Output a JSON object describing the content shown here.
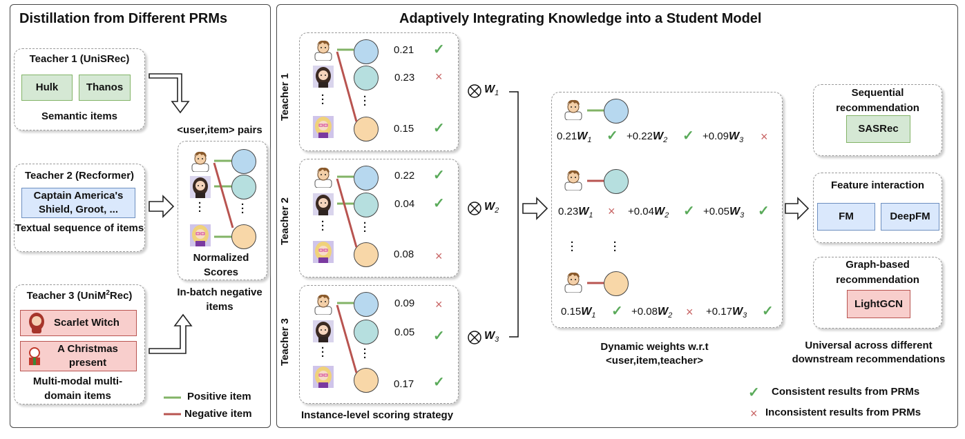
{
  "left_panel": {
    "title": "Distillation from Different PRMs",
    "teacher1": {
      "title": "Teacher 1 (UniSRec)",
      "items": [
        "Hulk",
        "Thanos"
      ],
      "caption": "Semantic items"
    },
    "teacher2": {
      "title": "Teacher 2 (Recformer)",
      "items": [
        "Captain America's Shield, Groot, ..."
      ],
      "caption": "Textual sequence of items"
    },
    "teacher3": {
      "title_pre": "Teacher 3 (UniM",
      "title_sup": "2",
      "title_post": "Rec)",
      "items": [
        "Scarlet Witch",
        "A Christmas present"
      ],
      "caption": "Multi-modal multi-domain items"
    },
    "pairs_label": "<user,item> pairs",
    "normalized_label": "Normalized Scores",
    "inbatch_label": "In-batch negative items",
    "legend": {
      "positive": "Positive item",
      "negative": "Negative item"
    }
  },
  "right_panel": {
    "title": "Adaptively Integrating Knowledge into a Student Model",
    "teachers": [
      {
        "label": "Teacher 1",
        "scores": [
          "0.21",
          "0.23",
          "0.15"
        ],
        "marks": [
          "check",
          "cross",
          "check"
        ],
        "weight": "W",
        "weight_sub": "1"
      },
      {
        "label": "Teacher 2",
        "scores": [
          "0.22",
          "0.04",
          "0.08"
        ],
        "marks": [
          "check",
          "check",
          "cross"
        ],
        "weight": "W",
        "weight_sub": "2"
      },
      {
        "label": "Teacher 3",
        "scores": [
          "0.09",
          "0.05",
          "0.17"
        ],
        "marks": [
          "cross",
          "check",
          "check"
        ],
        "weight": "W",
        "weight_sub": "3"
      }
    ],
    "scoring_caption": "Instance-level scoring strategy",
    "dynamic_rows": [
      {
        "terms": [
          "0.21",
          "+0.22",
          "+0.09"
        ],
        "marks": [
          "check",
          "check",
          "cross"
        ]
      },
      {
        "terms": [
          "0.23",
          "+0.04",
          "+0.05"
        ],
        "marks": [
          "cross",
          "check",
          "check"
        ]
      },
      {
        "terms": [
          "0.15",
          "+0.08",
          "+0.17"
        ],
        "marks": [
          "check",
          "cross",
          "check"
        ]
      }
    ],
    "dynamic_caption": "Dynamic weights w.r.t <user,item,teacher>",
    "downstream": {
      "sequential": {
        "title": "Sequential recommendation",
        "models": [
          "SASRec"
        ]
      },
      "feature": {
        "title": "Feature interaction",
        "models": [
          "FM",
          "DeepFM"
        ]
      },
      "graph": {
        "title": "Graph-based recommendation",
        "models": [
          "LightGCN"
        ]
      },
      "caption": "Universal across different downstream recommendations"
    },
    "legend": {
      "consistent": "Consistent results from PRMs",
      "inconsistent": "Inconsistent results from PRMs"
    }
  },
  "colors": {
    "positive": "#82b366",
    "negative": "#b85450",
    "check": "#5aaa5a",
    "cross": "#c86464"
  },
  "icons": [
    "avatar-male-icon",
    "avatar-female-icon",
    "avatar-blonde-icon",
    "scarlet-witch-icon",
    "christmas-icon",
    "check-icon",
    "cross-icon",
    "tensor-product-icon",
    "hollow-arrow-icon"
  ]
}
